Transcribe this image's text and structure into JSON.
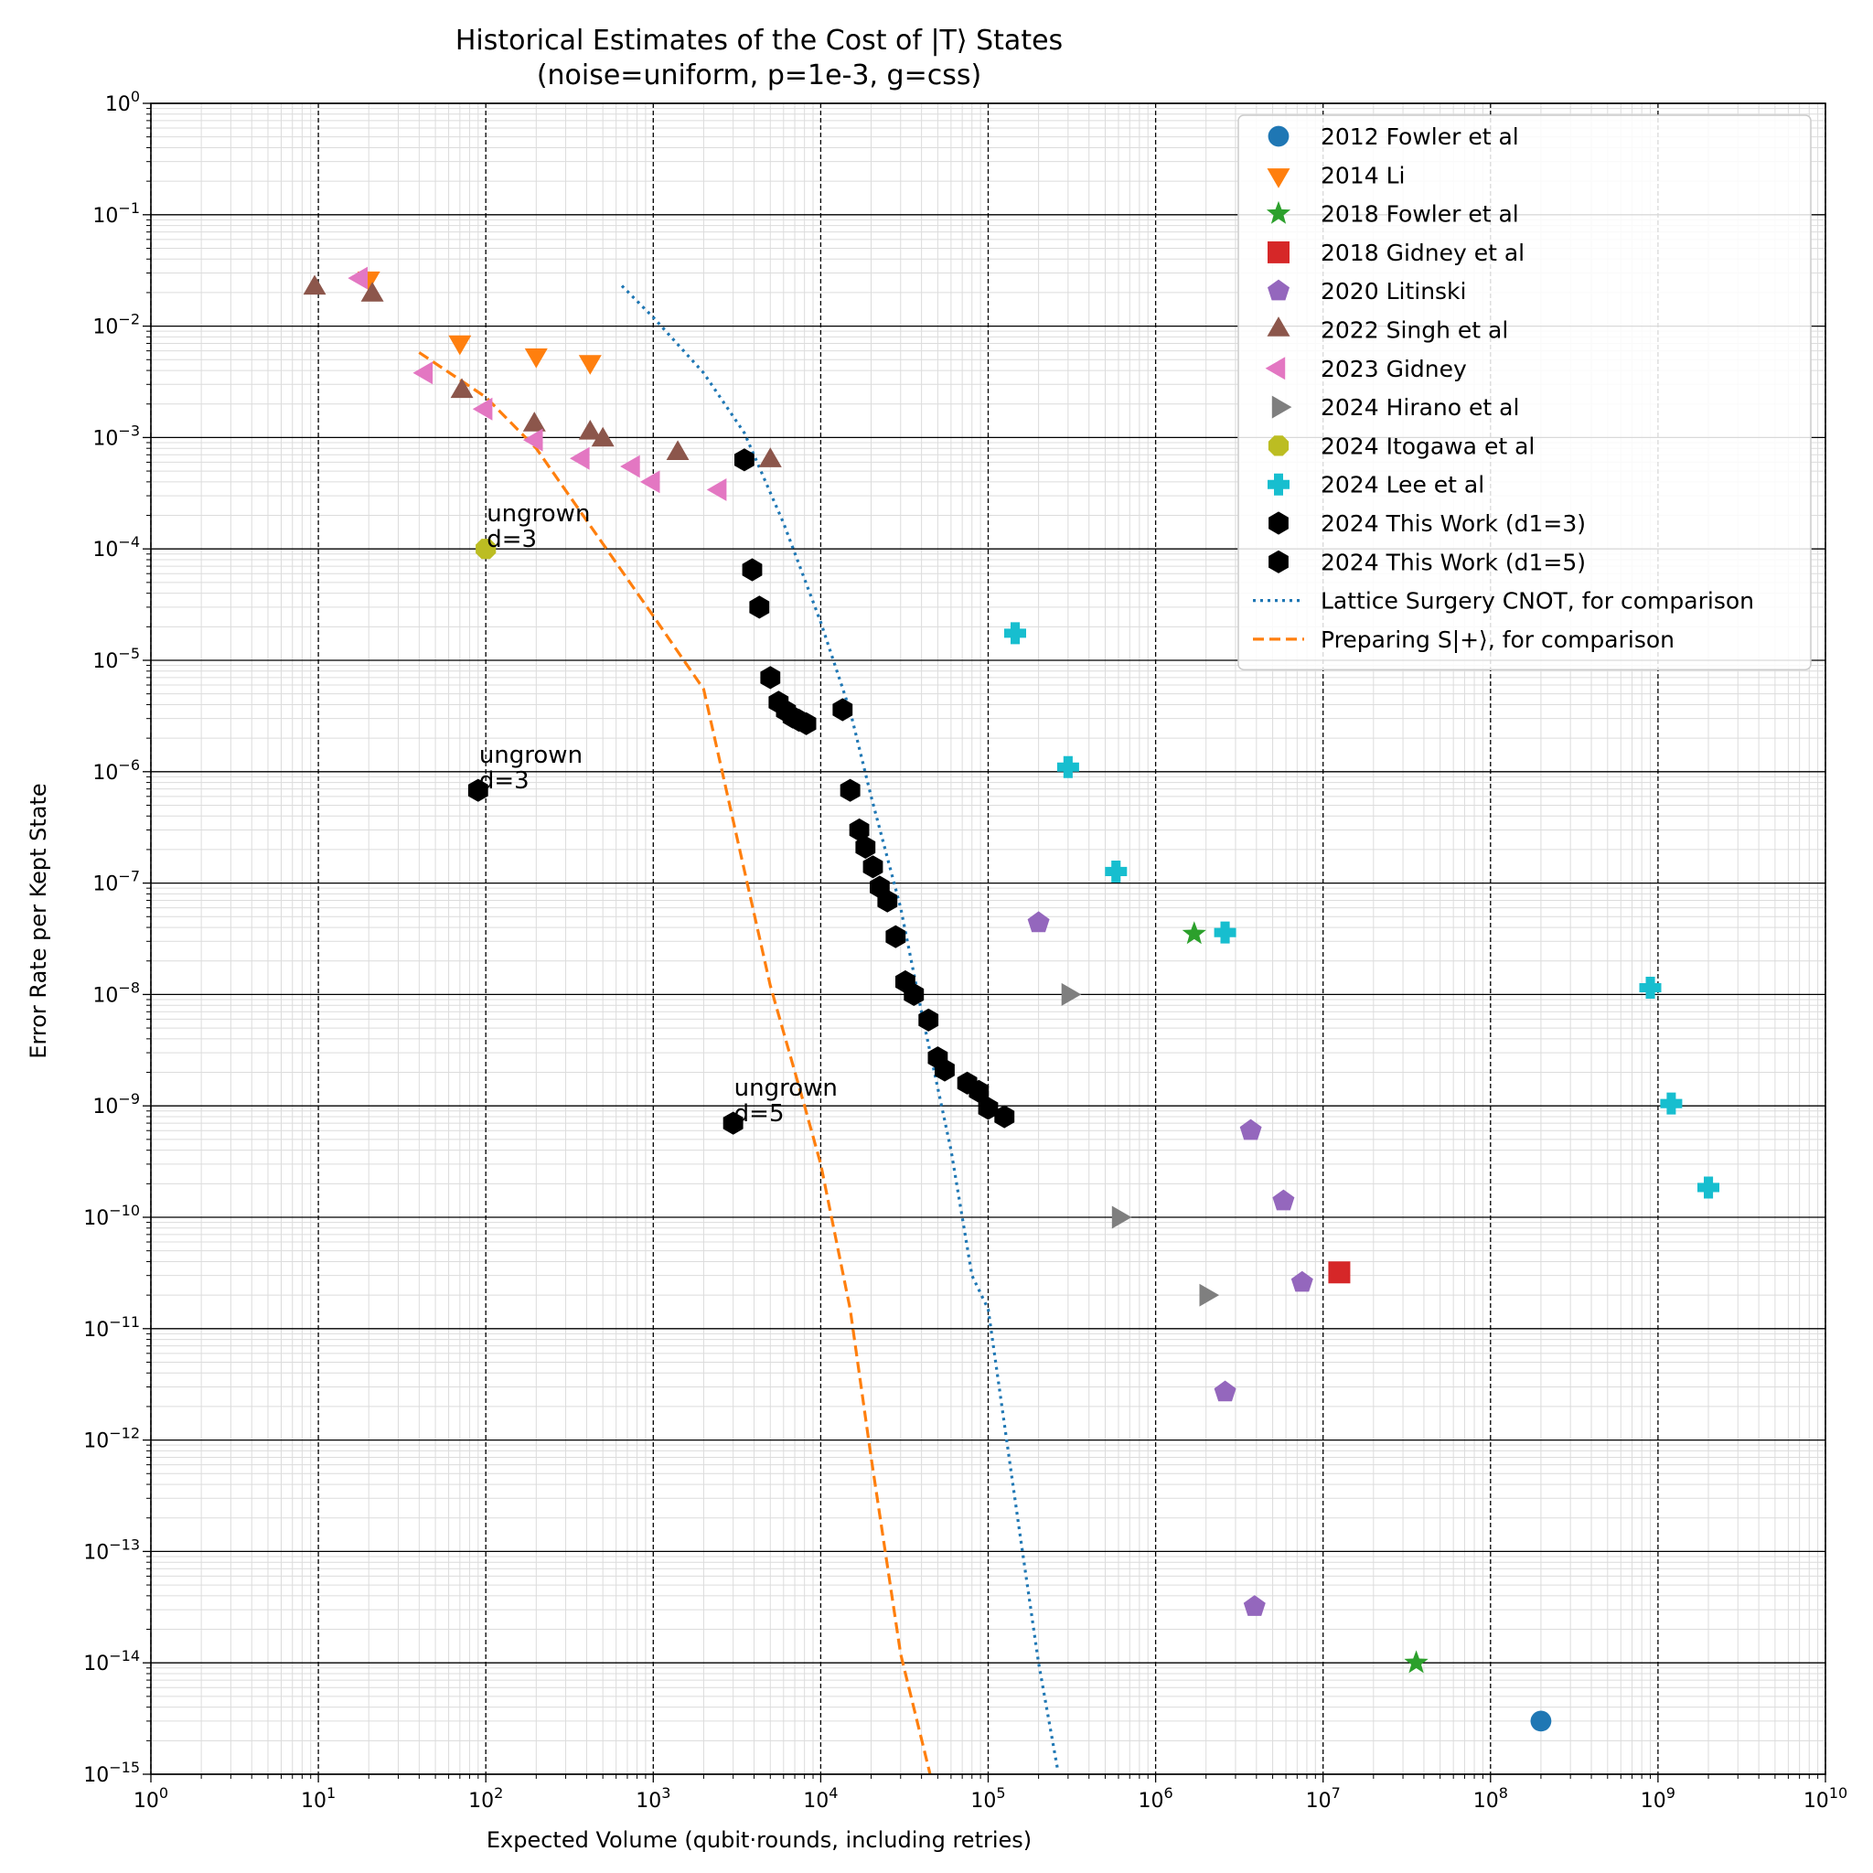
{
  "chart_data": {
    "type": "scatter",
    "title": "Historical Estimates of the Cost of |T⟩ States",
    "subtitle": "(noise=uniform, p=1e-3, g=css)",
    "xlabel": "Expected Volume (qubit·rounds, including retries)",
    "ylabel": "Error Rate per Kept State",
    "x_scale": "log",
    "y_scale": "log",
    "xlim": [
      1,
      10000000000
    ],
    "ylim": [
      1e-15,
      1
    ],
    "grid": true,
    "legend_position": "top-right",
    "x_ticks": [
      {
        "value": 1,
        "base": "10",
        "exp": "0"
      },
      {
        "value": 10,
        "base": "10",
        "exp": "1"
      },
      {
        "value": 100,
        "base": "10",
        "exp": "2"
      },
      {
        "value": 1000,
        "base": "10",
        "exp": "3"
      },
      {
        "value": 10000,
        "base": "10",
        "exp": "4"
      },
      {
        "value": 100000,
        "base": "10",
        "exp": "5"
      },
      {
        "value": 1000000,
        "base": "10",
        "exp": "6"
      },
      {
        "value": 10000000,
        "base": "10",
        "exp": "7"
      },
      {
        "value": 100000000,
        "base": "10",
        "exp": "8"
      },
      {
        "value": 1000000000,
        "base": "10",
        "exp": "9"
      },
      {
        "value": 10000000000,
        "base": "10",
        "exp": "10"
      }
    ],
    "y_ticks": [
      {
        "value": 1,
        "base": "10",
        "exp": "0"
      },
      {
        "value": 0.1,
        "base": "10",
        "exp": "−1"
      },
      {
        "value": 0.01,
        "base": "10",
        "exp": "−2"
      },
      {
        "value": 0.001,
        "base": "10",
        "exp": "−3"
      },
      {
        "value": 0.0001,
        "base": "10",
        "exp": "−4"
      },
      {
        "value": 1e-05,
        "base": "10",
        "exp": "−5"
      },
      {
        "value": 1e-06,
        "base": "10",
        "exp": "−6"
      },
      {
        "value": 1e-07,
        "base": "10",
        "exp": "−7"
      },
      {
        "value": 1e-08,
        "base": "10",
        "exp": "−8"
      },
      {
        "value": 1e-09,
        "base": "10",
        "exp": "−9"
      },
      {
        "value": 1e-10,
        "base": "10",
        "exp": "−10"
      },
      {
        "value": 1e-11,
        "base": "10",
        "exp": "−11"
      },
      {
        "value": 1e-12,
        "base": "10",
        "exp": "−12"
      },
      {
        "value": 1e-13,
        "base": "10",
        "exp": "−13"
      },
      {
        "value": 1e-14,
        "base": "10",
        "exp": "−14"
      },
      {
        "value": 1e-15,
        "base": "10",
        "exp": "−15"
      }
    ],
    "series": [
      {
        "name": "2012 Fowler et al",
        "marker": "circle",
        "color": "#1f77b4",
        "points": [
          [
            200000000,
            3e-15
          ]
        ]
      },
      {
        "name": "2014 Li",
        "marker": "triangle-down",
        "color": "#ff7f0e",
        "points": [
          [
            20,
            0.027
          ],
          [
            70,
            0.0072
          ],
          [
            200,
            0.0055
          ],
          [
            420,
            0.0048
          ]
        ]
      },
      {
        "name": "2018 Fowler et al",
        "marker": "star",
        "color": "#2ca02c",
        "points": [
          [
            1700000,
            3.5e-08
          ],
          [
            36000000,
            1e-14
          ]
        ]
      },
      {
        "name": "2018 Gidney et al",
        "marker": "square",
        "color": "#d62728",
        "points": [
          [
            12500000,
            3.2e-11
          ]
        ]
      },
      {
        "name": "2020 Litinski",
        "marker": "pentagon",
        "color": "#9467bd",
        "points": [
          [
            200000,
            4.4e-08
          ],
          [
            3700000,
            6e-10
          ],
          [
            5800000,
            1.4e-10
          ],
          [
            7500000,
            2.6e-11
          ],
          [
            2600000,
            2.7e-12
          ],
          [
            3900000,
            3.2e-14
          ]
        ]
      },
      {
        "name": "2022 Singh et al",
        "marker": "triangle-up",
        "color": "#8c564b",
        "points": [
          [
            9.5,
            0.022
          ],
          [
            21,
            0.019
          ],
          [
            72,
            0.0026
          ],
          [
            195,
            0.0013
          ],
          [
            420,
            0.0011
          ],
          [
            500,
            0.00095
          ],
          [
            1400,
            0.00072
          ],
          [
            5000,
            0.00062
          ]
        ]
      },
      {
        "name": "2023 Gidney",
        "marker": "triangle-left",
        "color": "#e377c2",
        "points": [
          [
            18,
            0.027
          ],
          [
            44,
            0.0038
          ],
          [
            100,
            0.0018
          ],
          [
            200,
            0.00095
          ],
          [
            380,
            0.00065
          ],
          [
            760,
            0.00055
          ],
          [
            1000,
            0.0004
          ],
          [
            2500,
            0.00034
          ]
        ]
      },
      {
        "name": "2024 Hirano et al",
        "marker": "triangle-right",
        "color": "#7f7f7f",
        "points": [
          [
            300000,
            1e-08
          ],
          [
            600000,
            1e-10
          ],
          [
            2000000,
            2e-11
          ]
        ]
      },
      {
        "name": "2024 Itogawa et al",
        "marker": "octagon",
        "color": "#bcbd22",
        "points": [
          [
            100,
            0.0001
          ]
        ]
      },
      {
        "name": "2024 Lee et al",
        "marker": "plus",
        "color": "#17becf",
        "points": [
          [
            145000,
            1.75e-05
          ],
          [
            300000,
            1.1e-06
          ],
          [
            580000,
            1.27e-07
          ],
          [
            2600000,
            3.6e-08
          ],
          [
            900000000,
            1.15e-08
          ],
          [
            1200000000,
            1.05e-09
          ],
          [
            2000000000,
            1.85e-10
          ]
        ]
      },
      {
        "name": "2024 This Work (d1=3)",
        "marker": "hexagon",
        "color": "#000000",
        "points": [
          [
            90,
            6.8e-07
          ],
          [
            3500,
            0.00063
          ],
          [
            3900,
            6.5e-05
          ],
          [
            4300,
            3e-05
          ],
          [
            5000,
            7e-06
          ],
          [
            5600,
            4.2e-06
          ],
          [
            6200,
            3.5e-06
          ],
          [
            6800,
            3.1e-06
          ],
          [
            7400,
            2.9e-06
          ],
          [
            8200,
            2.7e-06
          ],
          [
            13500,
            3.6e-06
          ],
          [
            15000,
            6.8e-07
          ],
          [
            17000,
            3e-07
          ],
          [
            18500,
            2.1e-07
          ],
          [
            20500,
            1.4e-07
          ],
          [
            22500,
            9.2e-08
          ],
          [
            25000,
            6.9e-08
          ],
          [
            28000,
            3.3e-08
          ],
          [
            32000,
            1.3e-08
          ],
          [
            36000,
            1e-08
          ],
          [
            44000,
            5.9e-09
          ],
          [
            50000,
            2.7e-09
          ],
          [
            55000,
            2.1e-09
          ],
          [
            75000,
            1.6e-09
          ],
          [
            88000,
            1.35e-09
          ],
          [
            100000,
            9.5e-10
          ],
          [
            125000,
            8e-10
          ]
        ]
      },
      {
        "name": "2024 This Work (d1=5)",
        "marker": "hexagon",
        "color": "#000000",
        "points": [
          [
            3000,
            7e-10
          ]
        ]
      }
    ],
    "lines": [
      {
        "name": "Lattice Surgery CNOT, for comparison",
        "style": "dotted",
        "color": "#1f77b4",
        "points": [
          [
            650,
            0.023
          ],
          [
            1000,
            0.012
          ],
          [
            2000,
            0.0038
          ],
          [
            3500,
            0.0011
          ],
          [
            6000,
            0.00017
          ],
          [
            10000,
            2.2e-05
          ],
          [
            15000,
            3.5e-06
          ],
          [
            20000,
            6e-07
          ],
          [
            30000,
            6e-08
          ],
          [
            40000,
            7e-09
          ],
          [
            60000,
            4e-10
          ],
          [
            80000,
            3e-11
          ],
          [
            100000,
            1.5e-11
          ],
          [
            150000,
            2e-13
          ],
          [
            200000,
            1e-14
          ],
          [
            260000,
            1.1e-15
          ]
        ]
      },
      {
        "name": "Preparing S|+⟩, for comparison",
        "style": "dashed",
        "color": "#ff7f0e",
        "points": [
          [
            40,
            0.0058
          ],
          [
            100,
            0.0023
          ],
          [
            200,
            0.0008
          ],
          [
            400,
            0.00018
          ],
          [
            1000,
            2.5e-05
          ],
          [
            2000,
            5.5e-06
          ],
          [
            3500,
            1.3e-07
          ],
          [
            5000,
            1.2e-08
          ],
          [
            8000,
            1e-09
          ],
          [
            10000,
            3e-10
          ],
          [
            15000,
            1.5e-11
          ],
          [
            20000,
            7e-13
          ],
          [
            30000,
            1.2e-14
          ],
          [
            45000,
            1e-15
          ]
        ]
      }
    ],
    "annotations": [
      {
        "line1": "ungrown",
        "line2": "d=3",
        "x": 100,
        "y": 0.0001
      },
      {
        "line1": "ungrown",
        "line2": "d=3",
        "x": 90,
        "y": 6.8e-07
      },
      {
        "line1": "ungrown",
        "line2": "d=5",
        "x": 3000,
        "y": 7e-10
      }
    ]
  }
}
